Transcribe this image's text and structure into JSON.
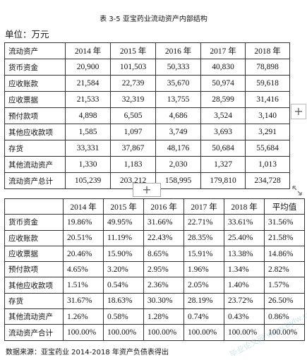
{
  "caption": "表 3-5 亚宝药业流动资产内部结构",
  "unit": "单位：万元",
  "table1": {
    "headers": [
      "流动资产",
      "2014 年",
      "2015 年",
      "2016 年",
      "2017 年",
      "2018 年"
    ],
    "rows": [
      [
        "货币资金",
        "20,900",
        "101,503",
        "50,333",
        "40,830",
        "78,898"
      ],
      [
        "应收账款",
        "21,584",
        "22,739",
        "35,670",
        "50,974",
        "59,618"
      ],
      [
        "应收票据",
        "21,533",
        "32,319",
        "13,755",
        "28,599",
        "31,416"
      ],
      [
        "预付款项",
        "4,898",
        "6,505",
        "4,686",
        "3,524",
        "3,140"
      ],
      [
        "其他应收款项",
        "1,585",
        "1,097",
        "3,749",
        "3,693",
        "3,291"
      ],
      [
        "存货",
        "33,331",
        "37,867",
        "48,176",
        "50,684",
        "55,684"
      ],
      [
        "其他流动资产",
        "1,330",
        "1,183",
        "2,030",
        "1,327",
        "1,013"
      ],
      [
        "流动资产总计",
        "105,239",
        "203,212",
        "158,995",
        "179,810",
        "234,728"
      ]
    ]
  },
  "table2": {
    "headers": [
      "",
      "2014 年",
      "2015 年",
      "2016 年",
      "2017 年",
      "2018 年",
      "平均值"
    ],
    "rows": [
      [
        "货币资金",
        "19.86%",
        "49.95%",
        "31.66%",
        "22.71%",
        "33.61%",
        "31.56%"
      ],
      [
        "应收账款",
        "20.51%",
        "11.19%",
        "22.43%",
        "28.35%",
        "25.40%",
        "21.58%"
      ],
      [
        "应收票据",
        "20.46%",
        "15.90%",
        "8.65%",
        "15.91%",
        "13.38%",
        "14.86%"
      ],
      [
        "预付款项",
        "4.65%",
        "3.20%",
        "2.95%",
        "1.96%",
        "1.34%",
        "2.82%"
      ],
      [
        "其他应收款项",
        "1.51%",
        "0.54%",
        "2.36%",
        "2.05%",
        "1.40%",
        "1.57%"
      ],
      [
        "存货",
        "31.67%",
        "18.63%",
        "30.30%",
        "28.19%",
        "23.72%",
        "26.50%"
      ],
      [
        "其他流动资产",
        "1.26%",
        "0.58%",
        "1.28%",
        "0.74%",
        "0.43%",
        "0.86%"
      ],
      [
        "流动资产合计",
        "100.00%",
        "100.00%",
        "100.00%",
        "100.00%",
        "100.00%",
        "100.00%"
      ]
    ]
  },
  "source": "数据来源：亚宝药业 2014-2018 年资产负债表得出",
  "controls": {
    "plus": "+",
    "resize": "resize-handle-icon"
  }
}
